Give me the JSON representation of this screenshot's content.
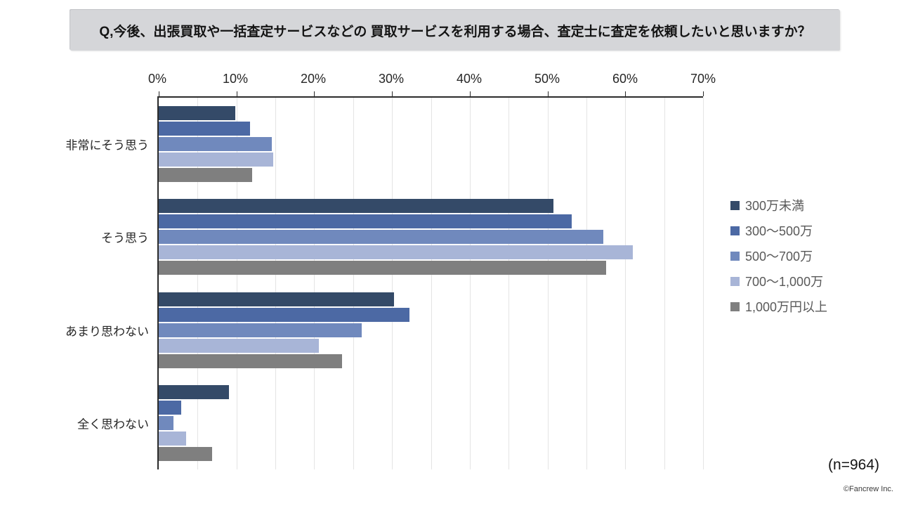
{
  "title": "Q,今後、出張買取や一括査定サービスなどの 買取サービスを利用する場合、査定士に査定を依頼したいと思いますか？",
  "sample_size_note": "(n=964)",
  "credit": "©Fancrew Inc.",
  "chart_data": {
    "type": "bar",
    "orientation": "horizontal",
    "title": "Q,今後、出張買取や一括査定サービスなどの 買取サービスを利用する場合、査定士に査定を依頼したいと思いますか？",
    "categories": [
      "非常にそう思う",
      "そう思う",
      "あまり思わない",
      "全く思わない"
    ],
    "series": [
      {
        "name": "300万未満",
        "color": "#344a68",
        "values": [
          9.8,
          50.8,
          30.3,
          9.0
        ]
      },
      {
        "name": "300～500万",
        "color": "#4c69a4",
        "values": [
          11.7,
          53.1,
          32.2,
          2.9
        ]
      },
      {
        "name": "500～700万",
        "color": "#7089bd",
        "values": [
          14.5,
          57.2,
          26.1,
          1.9
        ]
      },
      {
        "name": "700～1,000万",
        "color": "#a8b5d7",
        "values": [
          14.7,
          61.0,
          20.6,
          3.5
        ]
      },
      {
        "name": "1,000万円以上",
        "color": "#7f7f7f",
        "values": [
          12.0,
          57.5,
          23.6,
          6.9
        ]
      }
    ],
    "x_ticks": [
      "0%",
      "10%",
      "20%",
      "30%",
      "40%",
      "50%",
      "60%",
      "70%"
    ],
    "xlim": [
      0,
      70
    ],
    "major_tick_step": 10,
    "minor_grid_step": 5,
    "grid": true,
    "legend_position": "right",
    "axis_color": "#2b2b2b",
    "gridline_color": "#e4e4e4"
  }
}
